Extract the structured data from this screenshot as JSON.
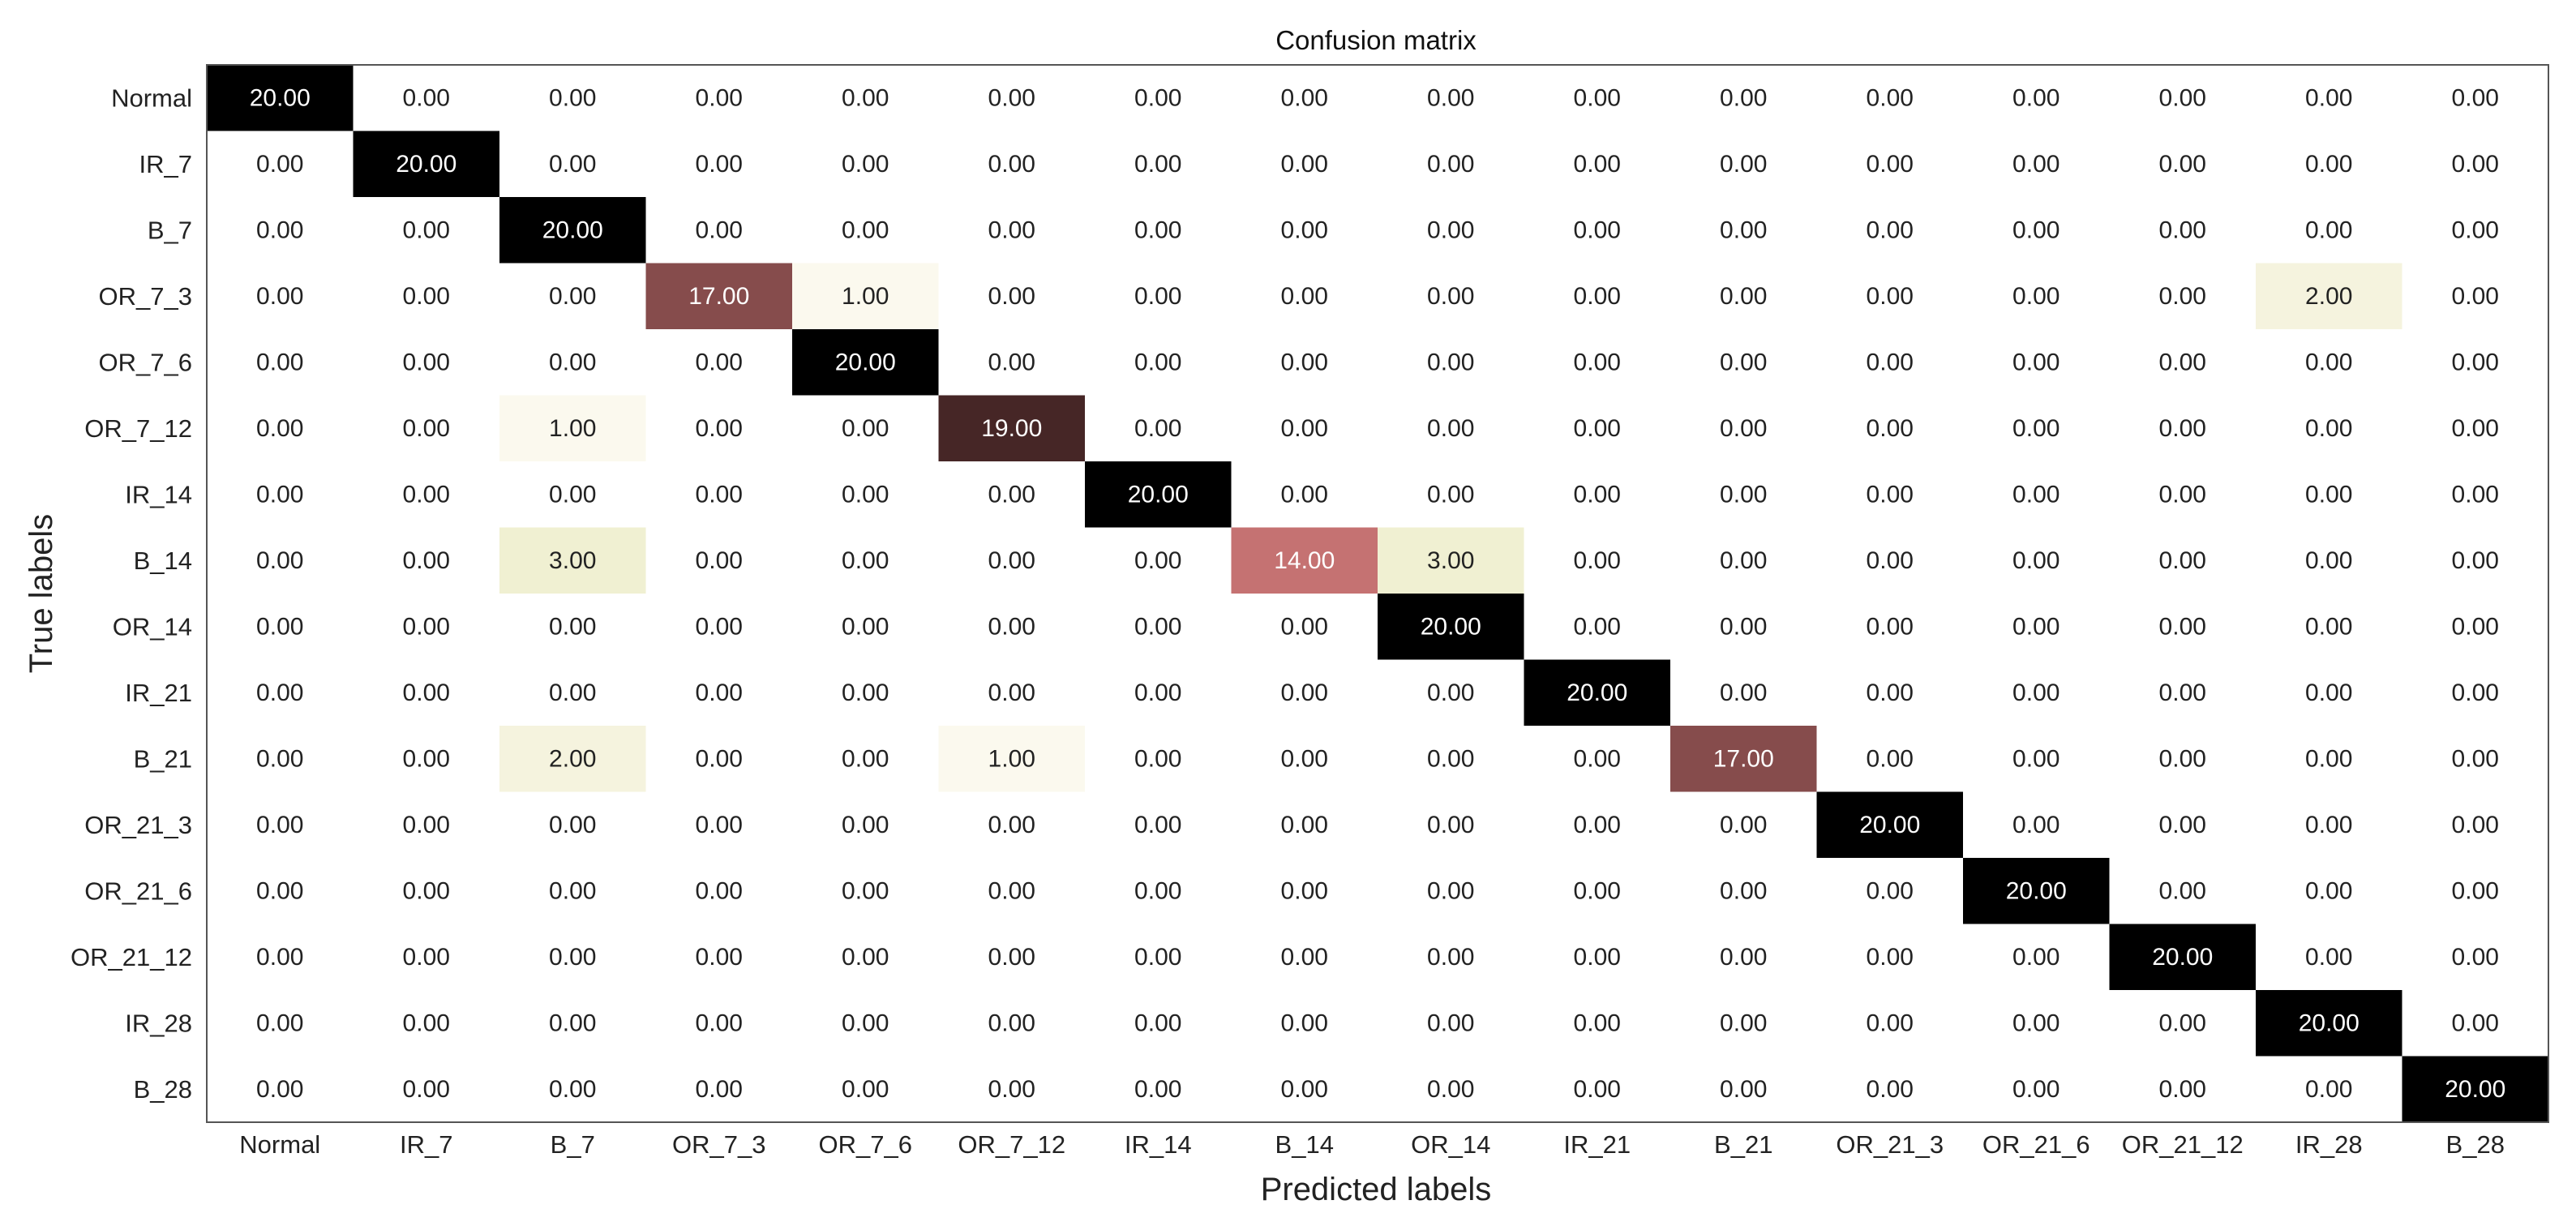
{
  "chart_data": {
    "type": "heatmap",
    "title": "Confusion matrix",
    "xlabel": "Predicted labels",
    "ylabel": "True labels",
    "x_categories": [
      "Normal",
      "IR_7",
      "B_7",
      "OR_7_3",
      "OR_7_6",
      "OR_7_12",
      "IR_14",
      "B_14",
      "OR_14",
      "IR_21",
      "B_21",
      "OR_21_3",
      "OR_21_6",
      "OR_21_12",
      "IR_28",
      "B_28"
    ],
    "y_categories": [
      "Normal",
      "IR_7",
      "B_7",
      "OR_7_3",
      "OR_7_6",
      "OR_7_12",
      "IR_14",
      "B_14",
      "OR_14",
      "IR_21",
      "B_21",
      "OR_21_3",
      "OR_21_6",
      "OR_21_12",
      "IR_28",
      "B_28"
    ],
    "value_format": "2 decimals",
    "color_range": [
      0,
      20
    ],
    "colors": {
      "low": "#ffffff",
      "high": "#000000",
      "frame": "#555555",
      "dark_text": "#222222",
      "light_text": "#ffffff"
    },
    "matrix": [
      [
        20,
        0,
        0,
        0,
        0,
        0,
        0,
        0,
        0,
        0,
        0,
        0,
        0,
        0,
        0,
        0
      ],
      [
        0,
        20,
        0,
        0,
        0,
        0,
        0,
        0,
        0,
        0,
        0,
        0,
        0,
        0,
        0,
        0
      ],
      [
        0,
        0,
        20,
        0,
        0,
        0,
        0,
        0,
        0,
        0,
        0,
        0,
        0,
        0,
        0,
        0
      ],
      [
        0,
        0,
        0,
        17,
        1,
        0,
        0,
        0,
        0,
        0,
        0,
        0,
        0,
        0,
        2,
        0
      ],
      [
        0,
        0,
        0,
        0,
        20,
        0,
        0,
        0,
        0,
        0,
        0,
        0,
        0,
        0,
        0,
        0
      ],
      [
        0,
        0,
        1,
        0,
        0,
        19,
        0,
        0,
        0,
        0,
        0,
        0,
        0,
        0,
        0,
        0
      ],
      [
        0,
        0,
        0,
        0,
        0,
        0,
        20,
        0,
        0,
        0,
        0,
        0,
        0,
        0,
        0,
        0
      ],
      [
        0,
        0,
        3,
        0,
        0,
        0,
        0,
        14,
        3,
        0,
        0,
        0,
        0,
        0,
        0,
        0
      ],
      [
        0,
        0,
        0,
        0,
        0,
        0,
        0,
        0,
        20,
        0,
        0,
        0,
        0,
        0,
        0,
        0
      ],
      [
        0,
        0,
        0,
        0,
        0,
        0,
        0,
        0,
        0,
        20,
        0,
        0,
        0,
        0,
        0,
        0
      ],
      [
        0,
        0,
        2,
        0,
        0,
        1,
        0,
        0,
        0,
        0,
        17,
        0,
        0,
        0,
        0,
        0
      ],
      [
        0,
        0,
        0,
        0,
        0,
        0,
        0,
        0,
        0,
        0,
        0,
        20,
        0,
        0,
        0,
        0
      ],
      [
        0,
        0,
        0,
        0,
        0,
        0,
        0,
        0,
        0,
        0,
        0,
        0,
        20,
        0,
        0,
        0
      ],
      [
        0,
        0,
        0,
        0,
        0,
        0,
        0,
        0,
        0,
        0,
        0,
        0,
        0,
        20,
        0,
        0
      ],
      [
        0,
        0,
        0,
        0,
        0,
        0,
        0,
        0,
        0,
        0,
        0,
        0,
        0,
        0,
        20,
        0
      ],
      [
        0,
        0,
        0,
        0,
        0,
        0,
        0,
        0,
        0,
        0,
        0,
        0,
        0,
        0,
        0,
        20
      ]
    ]
  }
}
